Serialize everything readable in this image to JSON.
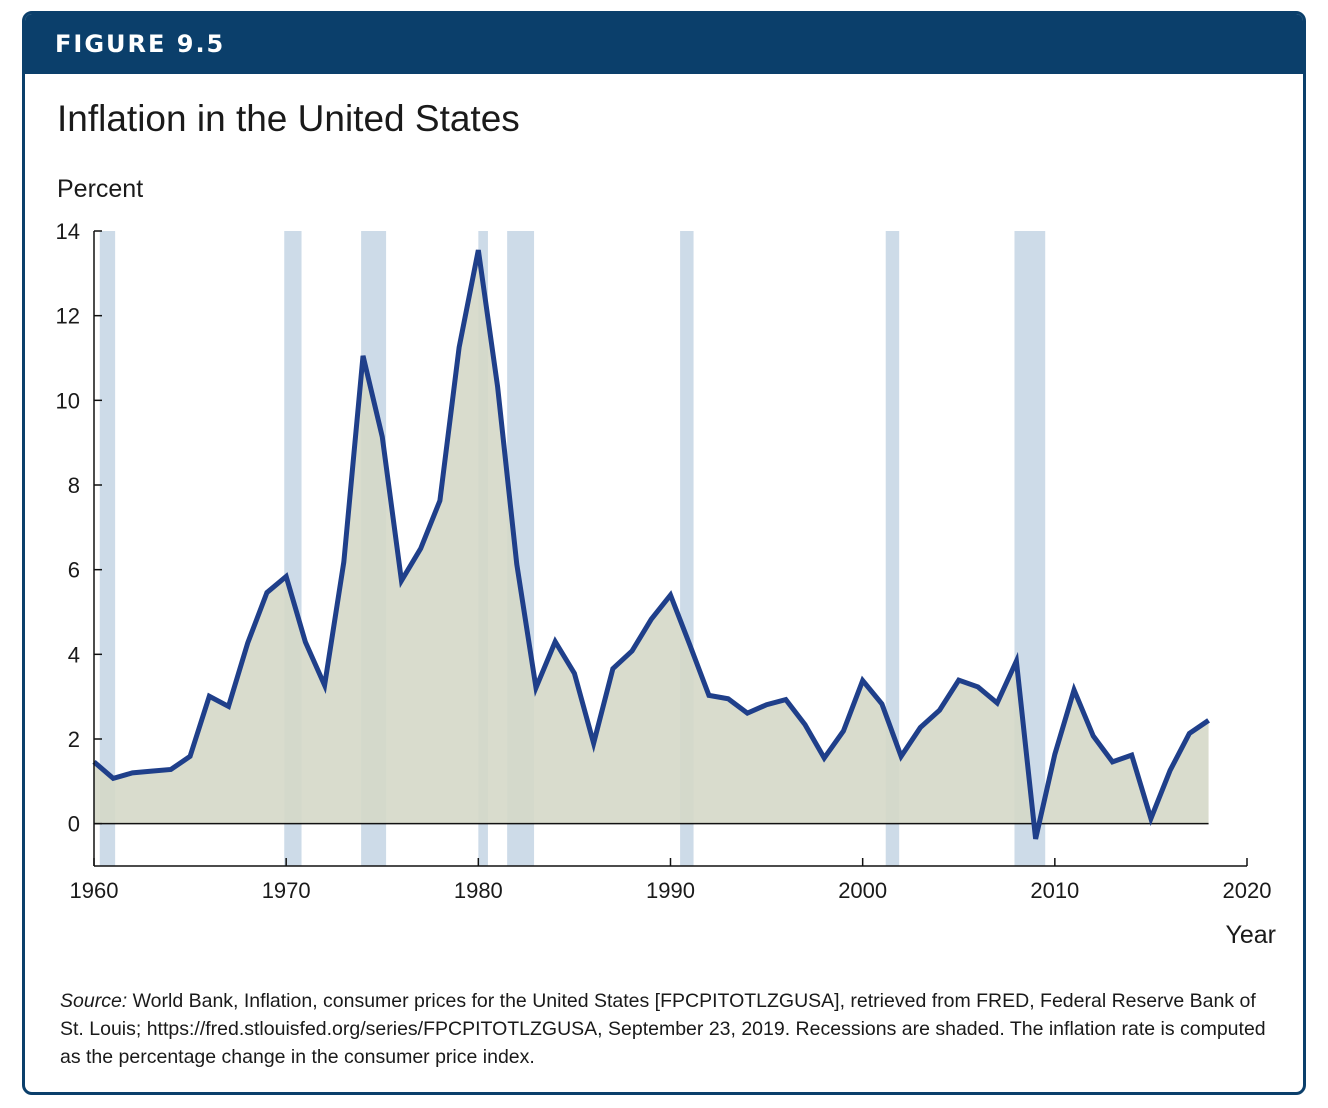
{
  "header": {
    "figure_label": "FIGURE 9.5"
  },
  "title": "Inflation in the United States",
  "source": {
    "label": "Source:",
    "text": "World Bank, Inflation, consumer prices for the United States [FPCPITOTLZGUSA], retrieved from FRED, Federal Reserve Bank of St. Louis; https://fred.stlouisfed.org/series/FPCPITOTLZGUSA, September 23, 2019. Recessions are shaded. The inflation rate is computed as the percentage change in the consumer price index."
  },
  "colors": {
    "header": "#0b3f6b",
    "line": "#1f3f8a",
    "area": "#d5d8c8",
    "recession": "#cddbe8"
  },
  "chart_data": {
    "type": "area",
    "ylabel": "Percent",
    "xlabel": "Year",
    "ylim": [
      -1,
      14
    ],
    "xlim": [
      1960,
      2020
    ],
    "yticks": [
      0,
      2,
      4,
      6,
      8,
      10,
      12,
      14
    ],
    "xticks": [
      1960,
      1970,
      1980,
      1990,
      2000,
      2010,
      2020
    ],
    "recessions": [
      [
        1960.3,
        1961.1
      ],
      [
        1969.9,
        1970.8
      ],
      [
        1973.9,
        1975.2
      ],
      [
        1980.0,
        1980.5
      ],
      [
        1981.5,
        1982.9
      ],
      [
        1990.5,
        1991.2
      ],
      [
        2001.2,
        2001.9
      ],
      [
        2007.9,
        2009.5
      ]
    ],
    "x": [
      1960,
      1961,
      1962,
      1963,
      1964,
      1965,
      1966,
      1967,
      1968,
      1969,
      1970,
      1971,
      1972,
      1973,
      1974,
      1975,
      1976,
      1977,
      1978,
      1979,
      1980,
      1981,
      1982,
      1983,
      1984,
      1985,
      1986,
      1987,
      1988,
      1989,
      1990,
      1991,
      1992,
      1993,
      1994,
      1995,
      1996,
      1997,
      1998,
      1999,
      2000,
      2001,
      2002,
      2003,
      2004,
      2005,
      2006,
      2007,
      2008,
      2009,
      2010,
      2011,
      2012,
      2013,
      2014,
      2015,
      2016,
      2017,
      2018
    ],
    "values": [
      1.46,
      1.07,
      1.2,
      1.24,
      1.28,
      1.59,
      3.01,
      2.77,
      4.27,
      5.46,
      5.84,
      4.29,
      3.27,
      6.18,
      11.05,
      9.14,
      5.74,
      6.5,
      7.63,
      11.25,
      13.55,
      10.33,
      6.13,
      3.21,
      4.3,
      3.55,
      1.9,
      3.66,
      4.08,
      4.83,
      5.4,
      4.23,
      3.03,
      2.95,
      2.61,
      2.81,
      2.93,
      2.34,
      1.55,
      2.19,
      3.38,
      2.83,
      1.59,
      2.27,
      2.68,
      3.39,
      3.23,
      2.85,
      3.84,
      -0.36,
      1.64,
      3.16,
      2.07,
      1.46,
      1.62,
      0.12,
      1.26,
      2.13,
      2.44
    ],
    "ytick_labels": [
      "0",
      "2",
      "4",
      "6",
      "8",
      "10",
      "12",
      "14"
    ],
    "xtick_labels": [
      "1960",
      "1970",
      "1980",
      "1990",
      "2000",
      "2010",
      "2020"
    ]
  }
}
